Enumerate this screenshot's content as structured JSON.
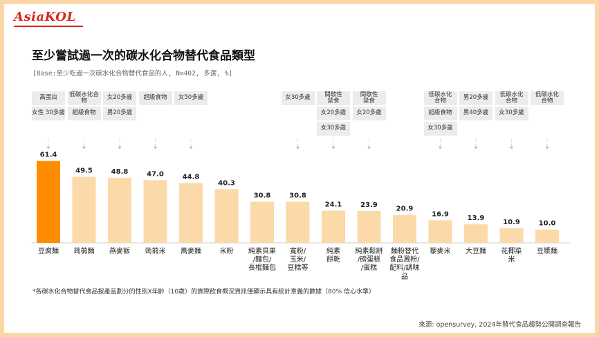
{
  "brand": "AsiaKOL",
  "title": "至少嘗試過一次的碳水化合物替代食品類型",
  "subtitle": "[Base:至少吃過一次碳水化合物替代食品的人, N=402, 多選, %]",
  "note": "*各碳水化合物替代食品按產品劃分的性別X年齡（10歲）的實際飲食概況資訊僅顯示具有統計意義的數據（80% 信心水準）",
  "source": "來源: opensurvey, 2024年替代食品趨勢公開調查報告",
  "colors": {
    "highlight": "#ff8c00",
    "bar": "#fcd9a8",
    "tag_bg": "#ececec",
    "brand": "#d8261c"
  },
  "chart_data": {
    "type": "bar",
    "categories": [
      "豆腐麵",
      "蒟蒻麵",
      "燕麥飯",
      "蒟蒻米",
      "蕎麥麵",
      "米粉",
      "純素貝果\n/麵包/\n長棍麵包",
      "寬粉/\n玉米/\n豆糕等",
      "純素\n餅乾",
      "純素鬆餅\n/磅蛋糕\n/蛋糕",
      "麵粉替代\n食品澱粉/\n配料/調味\n品",
      "藜麥米",
      "大豆麵",
      "花椰菜\n米",
      "豆漿麵"
    ],
    "values": [
      61.4,
      49.5,
      48.8,
      47.0,
      44.8,
      40.3,
      30.8,
      30.8,
      24.1,
      23.9,
      20.9,
      16.9,
      13.9,
      10.9,
      10.0
    ],
    "value_labels": [
      "61.4",
      "49.5",
      "48.8",
      "47.0",
      "44.8",
      "40.3",
      "30.8",
      "30.8",
      "24.1",
      "23.9",
      "20.9",
      "16.9",
      "13.9",
      "10.9",
      "10.0"
    ],
    "highlight_index": 0,
    "ylim": [
      0,
      70
    ],
    "segments": [
      [
        "高蛋白",
        "女性 30多歲"
      ],
      [
        "低碳水化合物",
        "超級食物"
      ],
      [
        "女20多歲",
        "男20多歲"
      ],
      [
        "超級食物"
      ],
      [
        "女50多歲"
      ],
      [],
      [],
      [
        "女30多歲"
      ],
      [
        "間歇性\n禁食",
        "女20多歲",
        "女30多歲"
      ],
      [
        "間歇性\n禁食",
        "女20多歲"
      ],
      [],
      [
        "低碳水化\n合物",
        "超級食物",
        "女30多歲"
      ],
      [
        "男20多歲",
        "男40多歲"
      ],
      [
        "低碳水化\n合物",
        "女30多歲"
      ],
      [
        "低碳水化\n合物"
      ]
    ]
  }
}
